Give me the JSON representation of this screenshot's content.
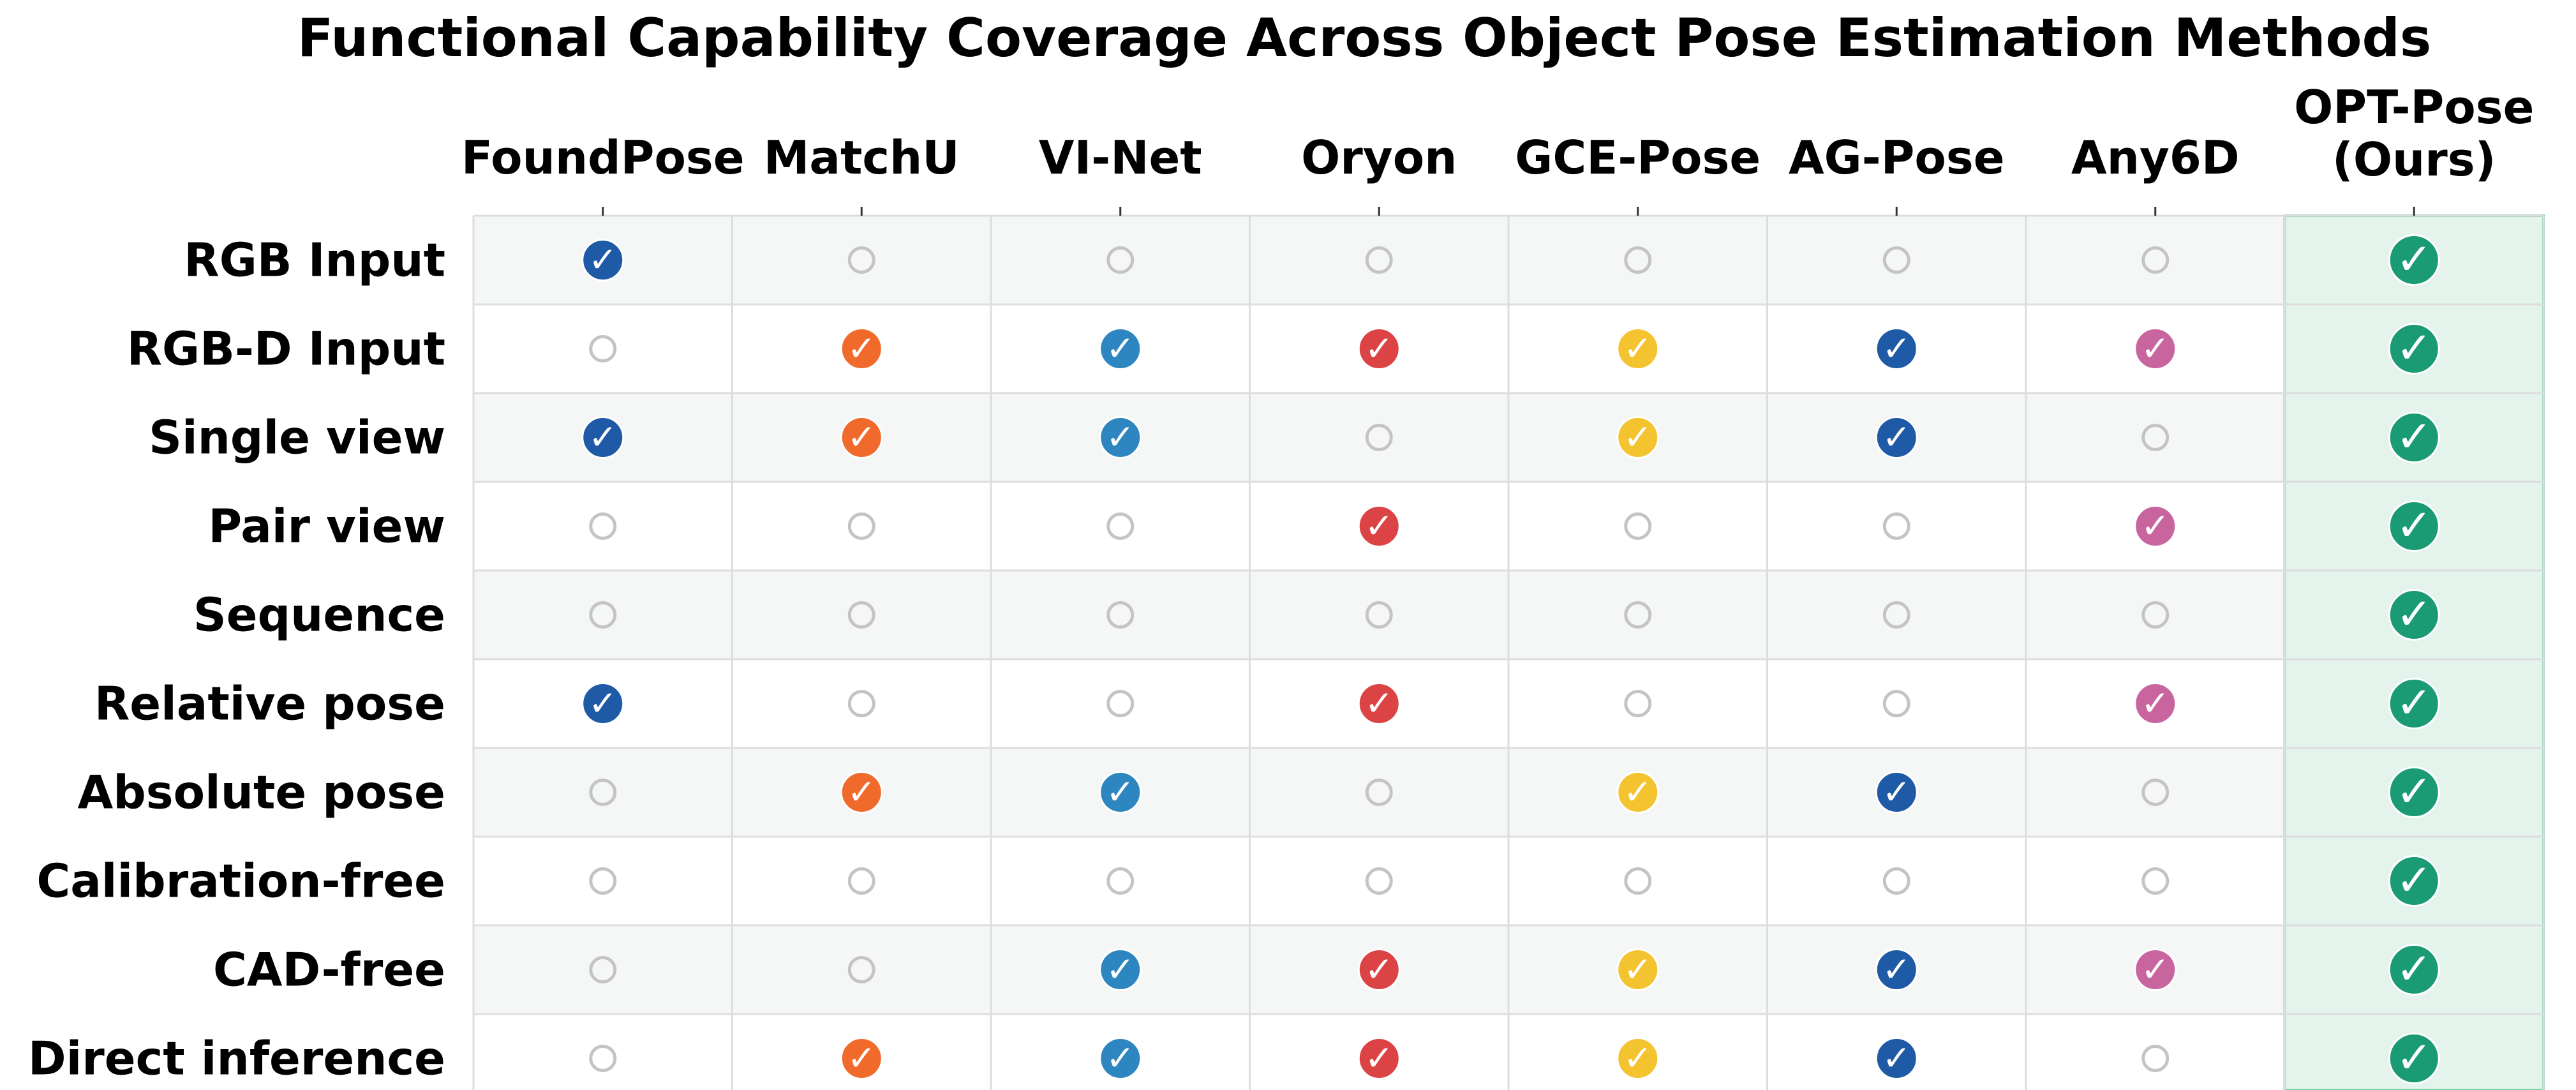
{
  "chart_data": {
    "type": "table",
    "title": "Functional Capability Coverage Across Object Pose Estimation Methods",
    "columns": [
      {
        "label": "FoundPose",
        "color": "#1f5aa6"
      },
      {
        "label": "MatchU",
        "color": "#f06a2c"
      },
      {
        "label": "VI-Net",
        "color": "#2e86c1"
      },
      {
        "label": "Oryon",
        "color": "#dc4345"
      },
      {
        "label": "GCE-Pose",
        "color": "#f4c430"
      },
      {
        "label": "AG-Pose",
        "color": "#1f5aa6"
      },
      {
        "label": "Any6D",
        "color": "#c8659f"
      },
      {
        "label_lines": [
          "OPT-Pose",
          "(Ours)"
        ],
        "color": "#1a9b74",
        "highlight": true,
        "highlight_fill": "#e4f4ec",
        "highlight_border": "#7fd0ac"
      }
    ],
    "rows": [
      {
        "label": "RGB Input",
        "values": [
          1,
          0,
          0,
          0,
          0,
          0,
          0,
          1
        ]
      },
      {
        "label": "RGB-D Input",
        "values": [
          0,
          1,
          1,
          1,
          1,
          1,
          1,
          1
        ]
      },
      {
        "label": "Single view",
        "values": [
          1,
          1,
          1,
          0,
          1,
          1,
          0,
          1
        ]
      },
      {
        "label": "Pair view",
        "values": [
          0,
          0,
          0,
          1,
          0,
          0,
          1,
          1
        ]
      },
      {
        "label": "Sequence",
        "values": [
          0,
          0,
          0,
          0,
          0,
          0,
          0,
          1
        ]
      },
      {
        "label": "Relative pose",
        "values": [
          1,
          0,
          0,
          1,
          0,
          0,
          1,
          1
        ]
      },
      {
        "label": "Absolute pose",
        "values": [
          0,
          1,
          1,
          0,
          1,
          1,
          0,
          1
        ]
      },
      {
        "label": "Calibration-free",
        "values": [
          0,
          0,
          0,
          0,
          0,
          0,
          0,
          1
        ]
      },
      {
        "label": "CAD-free",
        "values": [
          0,
          0,
          1,
          1,
          1,
          1,
          1,
          1
        ]
      },
      {
        "label": "Direct inference",
        "values": [
          0,
          1,
          1,
          1,
          1,
          1,
          0,
          1
        ]
      }
    ],
    "check_glyph": "✓",
    "empty_marker_color": "#c4c4c4",
    "stripe_color": "#f5f7f6",
    "grid_color": "#dddddd"
  }
}
